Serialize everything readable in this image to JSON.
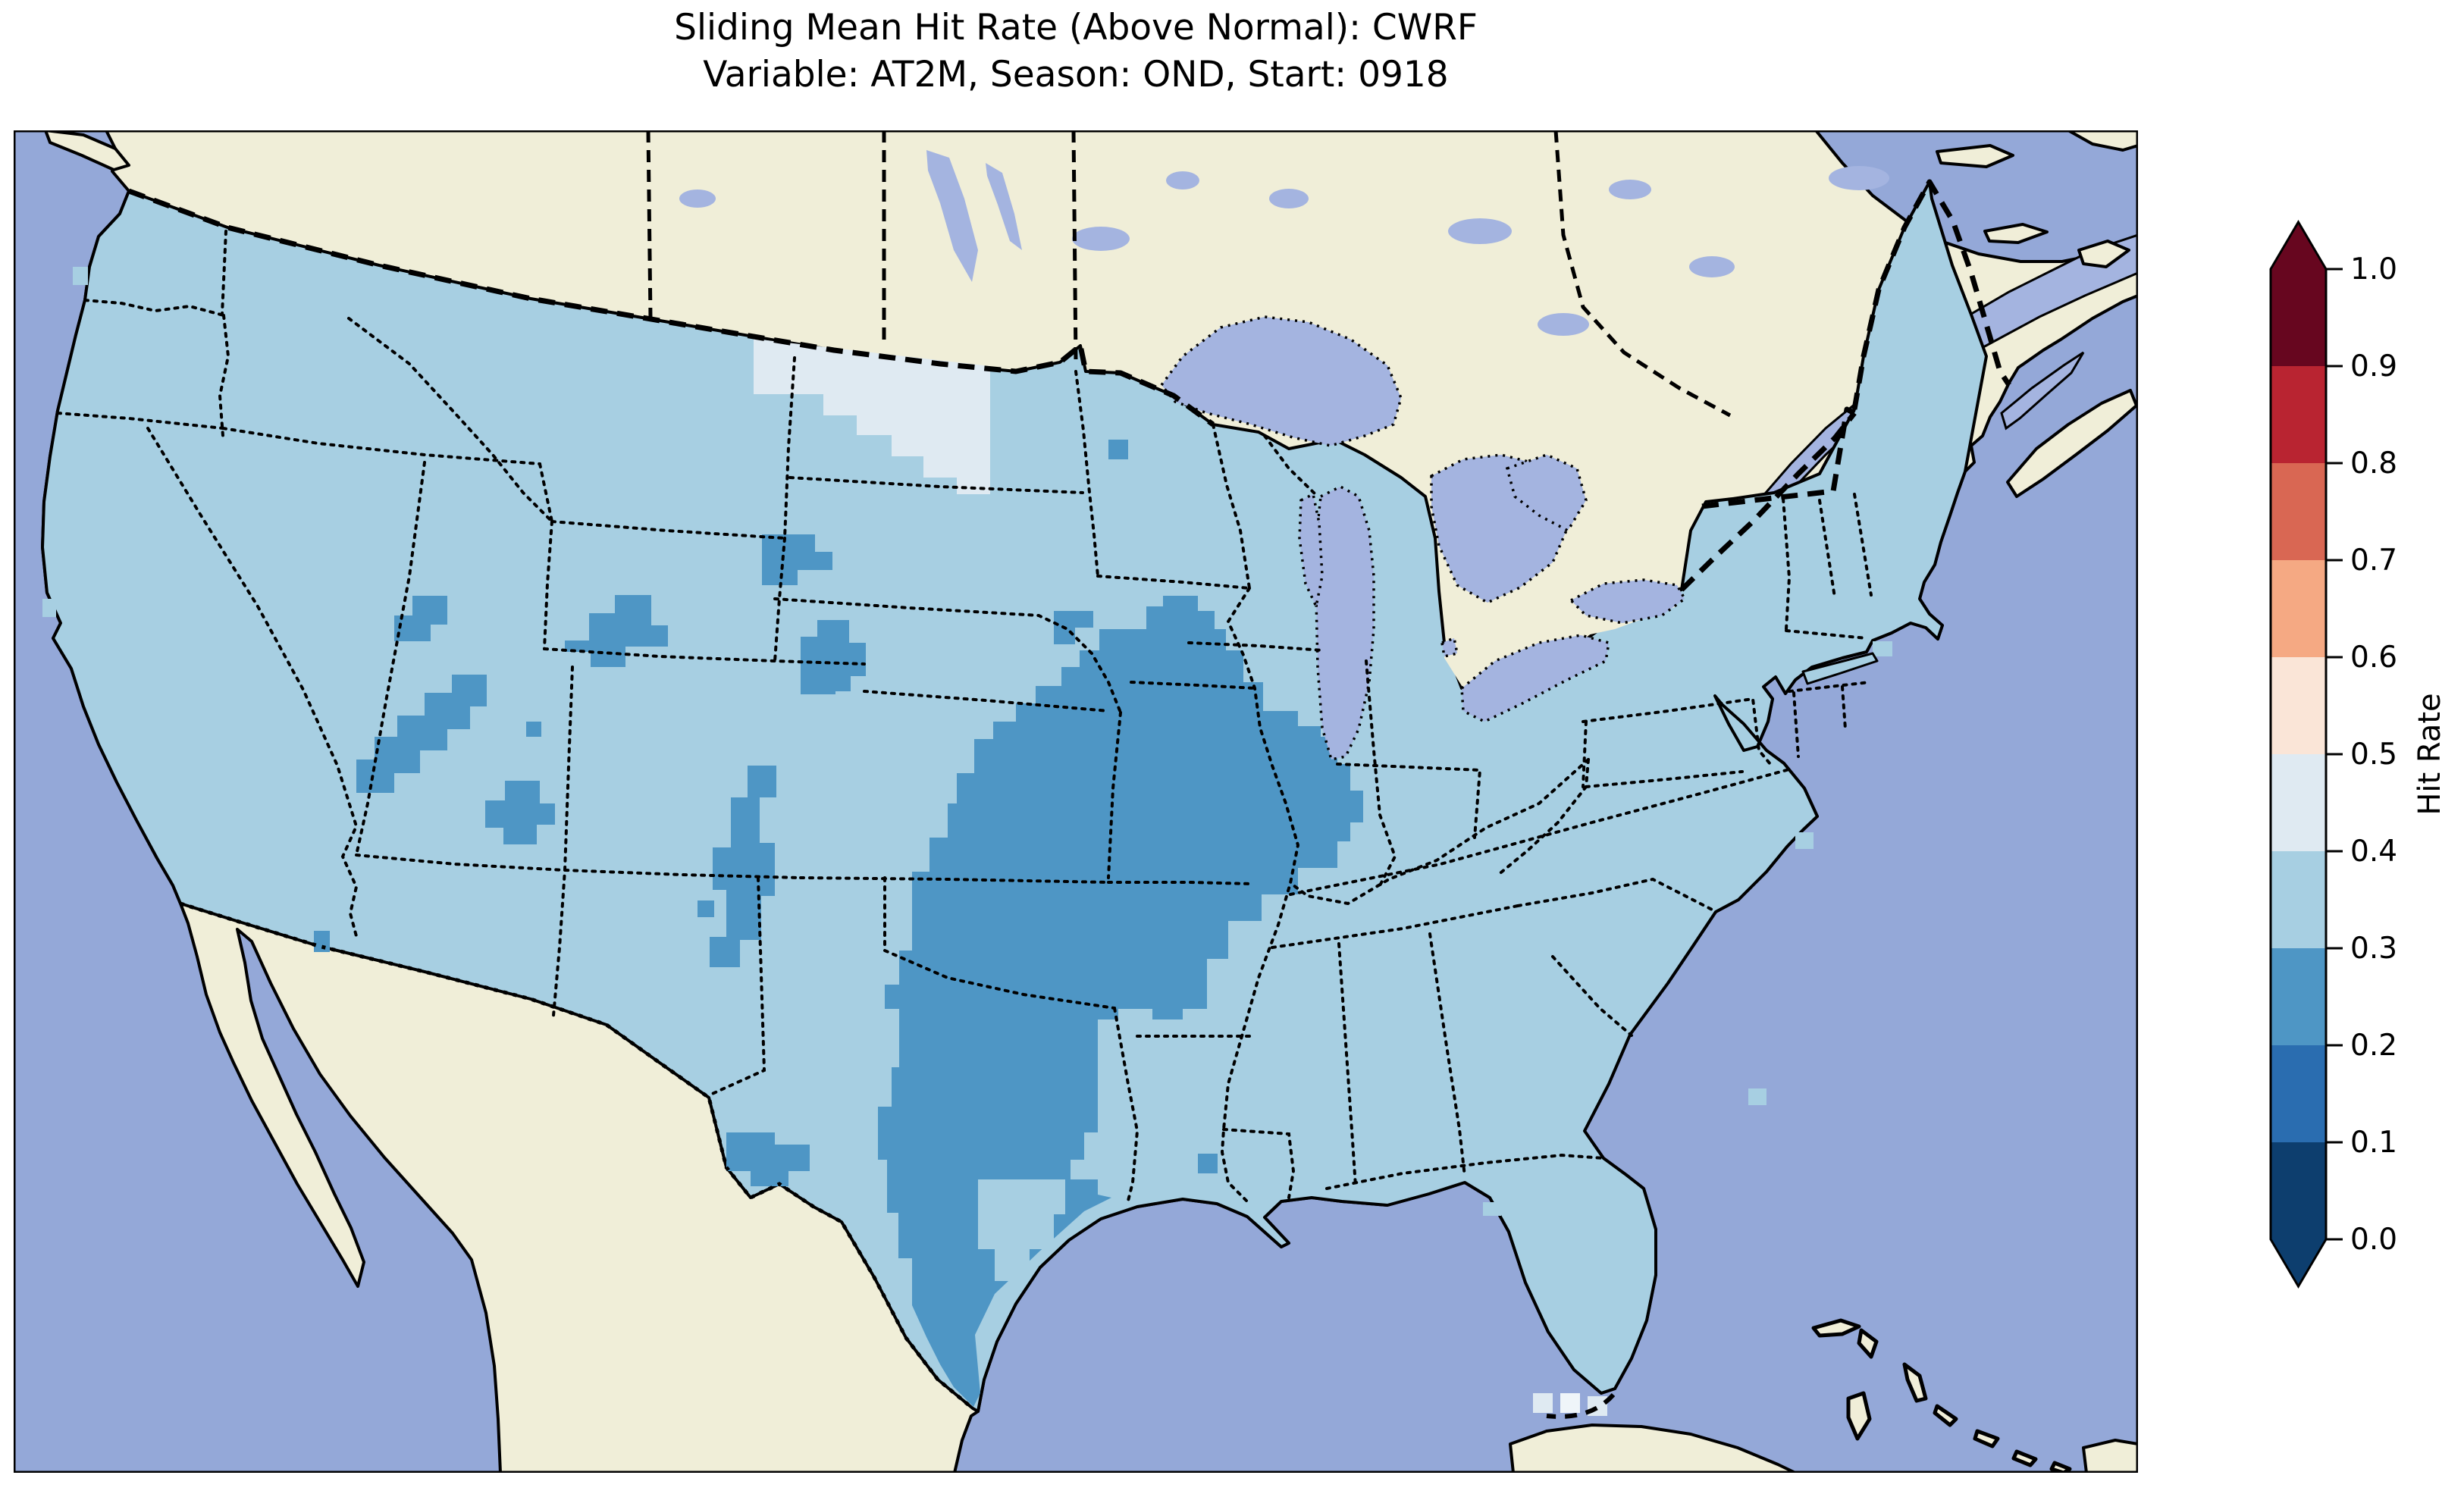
{
  "title": {
    "line1": "Sliding Mean Hit Rate (Above Normal): CWRF",
    "line2": "Variable: AT2M, Season: OND, Start: 0918"
  },
  "colorbar": {
    "label": "Hit Rate",
    "tick_labels": [
      "1.0",
      "0.9",
      "0.8",
      "0.7",
      "0.6",
      "0.5",
      "0.4",
      "0.3",
      "0.2",
      "0.1",
      "0.0"
    ],
    "segments_top_to_bottom": [
      {
        "range": "0.9-1.0",
        "color": "#67061f"
      },
      {
        "range": "0.8-0.9",
        "color": "#b92431"
      },
      {
        "range": "0.7-0.8",
        "color": "#d96753"
      },
      {
        "range": "0.6-0.7",
        "color": "#f5a983"
      },
      {
        "range": "0.5-0.6",
        "color": "#fae5d7"
      },
      {
        "range": "0.4-0.5",
        "color": "#dfeaf2"
      },
      {
        "range": "0.3-0.4",
        "color": "#a7cfe2"
      },
      {
        "range": "0.2-0.3",
        "color": "#4e96c5"
      },
      {
        "range": "0.1-0.2",
        "color": "#2a6db0"
      },
      {
        "range": "0.0-0.1",
        "color": "#0d3e6e"
      }
    ],
    "extend_over_color": "#67061f",
    "extend_under_color": "#0d3e6e"
  },
  "map_colors": {
    "ocean": "#94a8d8",
    "land": "#f0eed8",
    "lakes": "#a4b4e0",
    "us_fill": "#a7cfe2",
    "low_patch": "#4e96c5",
    "high_patch": "#dfeaf2",
    "high_patch_bright": "#eff5f9"
  },
  "chart_data": {
    "type": "heatmap",
    "title": "Sliding Mean Hit Rate (Above Normal): CWRF",
    "subtitle": "Variable: AT2M, Season: OND, Start: 0918",
    "metric": "Sliding Mean Hit Rate (Above Normal)",
    "model": "CWRF",
    "variable": "AT2M",
    "season": "OND",
    "start": "0918",
    "value_range": [
      0.0,
      1.0
    ],
    "bin_size": 0.1,
    "colormap": "RdBu_r, 10 discrete bins, extended arrows both ends",
    "colorbar_label": "Hit Rate",
    "regions": [
      {
        "area": "Most of contiguous US",
        "hit_rate_bin": "0.3-0.4"
      },
      {
        "area": "Central US: southern Iowa, Missouri, eastern Kansas, Oklahoma, Arkansas, western Kentucky/Tennessee, north & central Texas down to the Gulf coast",
        "hit_rate_bin": "0.2-0.3"
      },
      {
        "area": "Scattered western patches: central Nevada chain, north Utah, east Utah / west Colorado strip, central Colorado, central Arizona, south Montana / north Wyoming, southwest Texas (Big Bend)",
        "hit_rate_bin": "0.2-0.3"
      },
      {
        "area": "Northeast Montana / northwest North Dakota",
        "hit_rate_bin": "0.4-0.5"
      },
      {
        "area": "Inset area near Houston, Texas",
        "hit_rate_bin": "0.3-0.4"
      },
      {
        "area": "Cells south of the Florida peninsula (Keys vicinity)",
        "hit_rate_bin": "0.4-0.5"
      }
    ],
    "layout": {
      "map_frame": true,
      "colorbar_position": "right",
      "grid": false
    }
  }
}
